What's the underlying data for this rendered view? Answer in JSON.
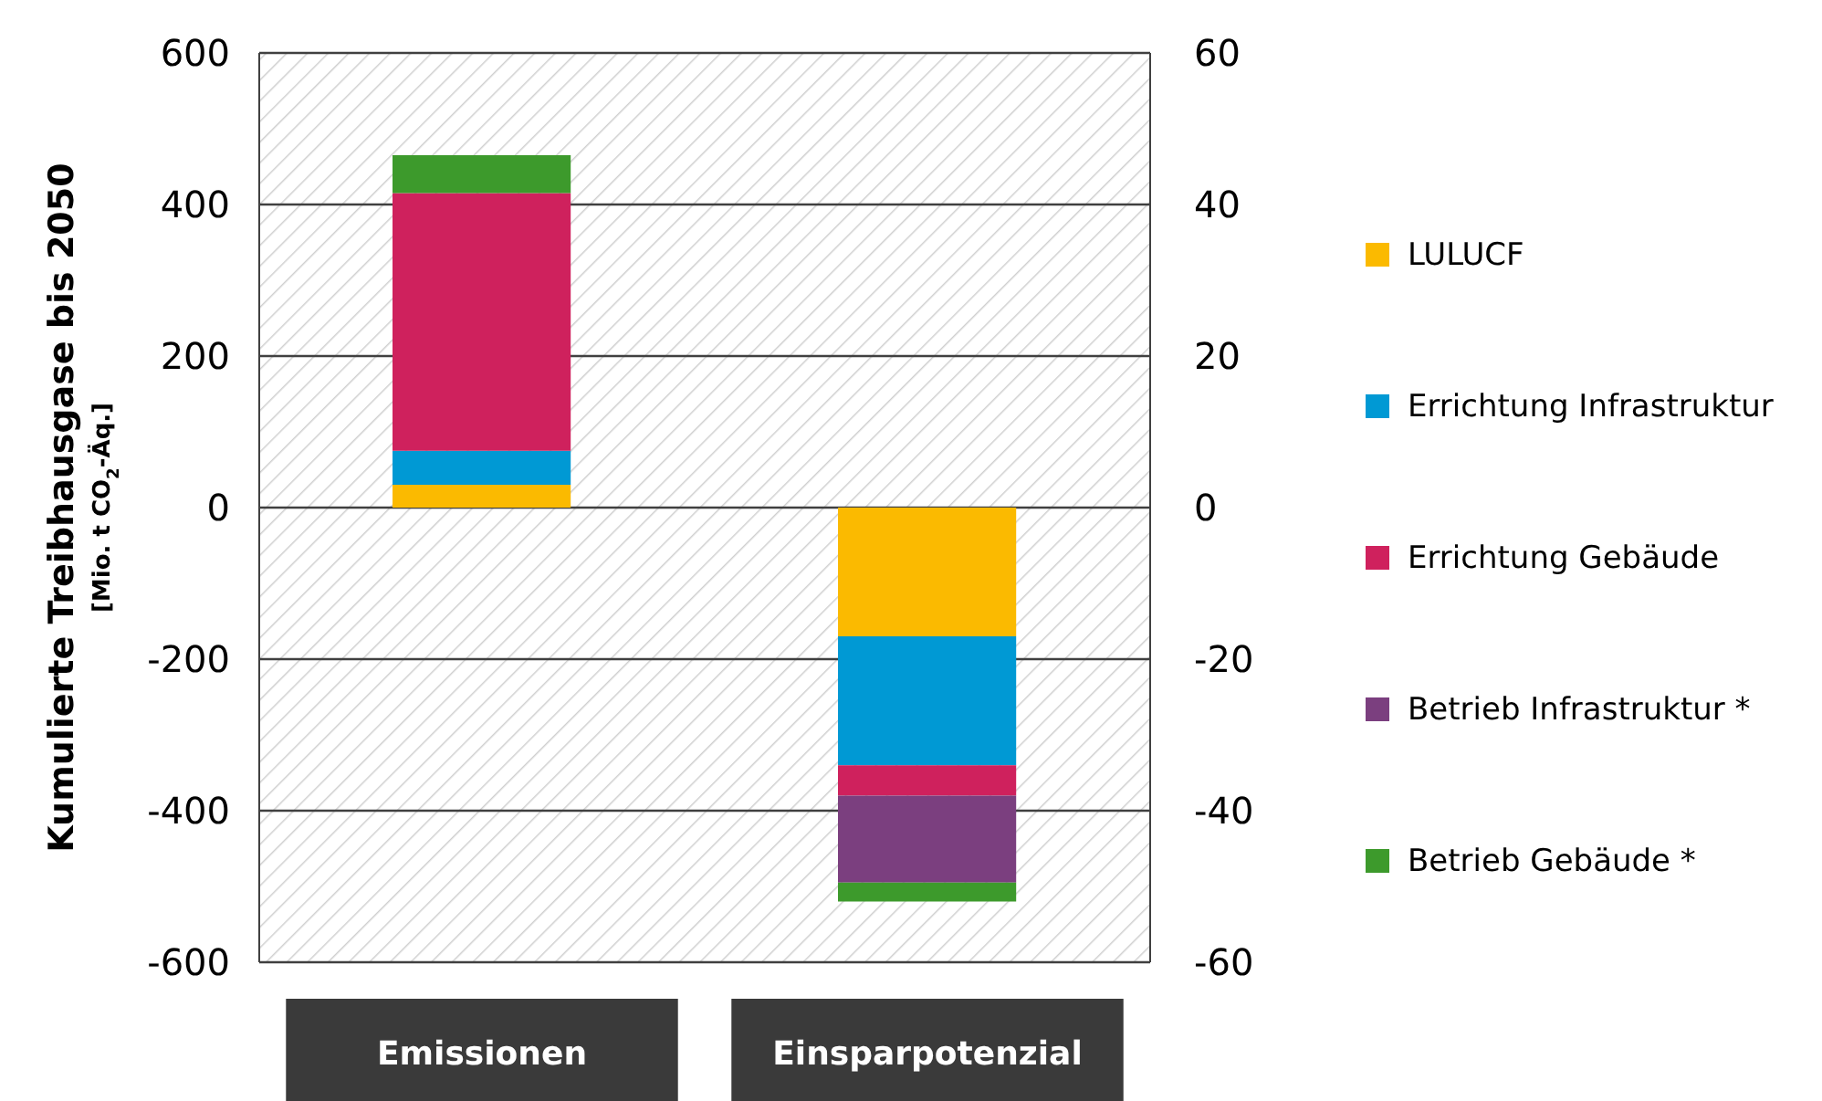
{
  "chart_data": {
    "type": "bar",
    "stacked": true,
    "ylabel": "Kumulierte Treibhausgase bis 2050\n[Mio. t CO$_{2}$-Äq.]",
    "categories": [
      "Emissionen",
      "Einsparpotenzial"
    ],
    "series": [
      {
        "name": "LULUCF",
        "color": "#fbba00",
        "values": [
          30,
          -170
        ]
      },
      {
        "name": "Errichtung Infrastruktur",
        "color": "#0099d4",
        "values": [
          45,
          -170
        ]
      },
      {
        "name": "Errichtung Gebäude",
        "color": "#cf215d",
        "values": [
          340,
          -40
        ]
      },
      {
        "name": "Betrieb Infrastruktur *",
        "color": "#7b3f7f",
        "values": [
          0,
          -115
        ]
      },
      {
        "name": "Betrieb Gebäude *",
        "color": "#3d9a2c",
        "values": [
          50,
          -25
        ]
      }
    ],
    "ylim": [
      -600,
      600
    ],
    "yticks": [
      -600,
      -400,
      -200,
      0,
      200,
      400,
      600
    ],
    "y2lim": [
      -60,
      60
    ],
    "y2ticks": [
      -60,
      -40,
      -20,
      0,
      20,
      40,
      60
    ],
    "grid": "y",
    "legend": "right"
  }
}
